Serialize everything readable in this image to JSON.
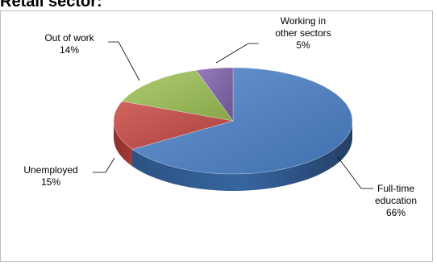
{
  "page": {
    "title": "Retail sector:"
  },
  "chart_data": {
    "type": "pie",
    "title": "",
    "three_d": true,
    "categories": [
      "Full-time education",
      "Unemployed",
      "Out of work",
      "Working in other sectors"
    ],
    "values": [
      66,
      15,
      14,
      5
    ],
    "colors": [
      "#4f81bd",
      "#c0504d",
      "#9bbb59",
      "#8064a2"
    ],
    "data_labels": [
      {
        "lines": [
          "Full-time",
          "education"
        ],
        "pct": "66%"
      },
      {
        "lines": [
          "Unemployed"
        ],
        "pct": "15%"
      },
      {
        "lines": [
          "Out of work"
        ],
        "pct": "14%"
      },
      {
        "lines": [
          "Working in",
          "other sectors"
        ],
        "pct": "5%"
      }
    ],
    "legend": "none"
  }
}
